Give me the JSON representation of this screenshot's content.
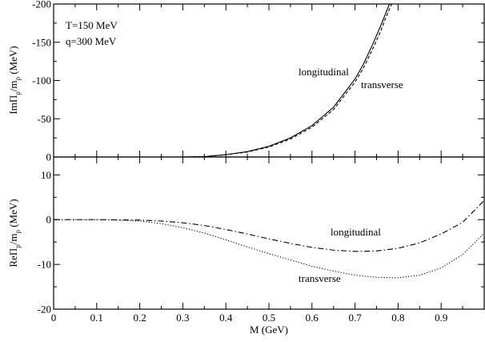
{
  "chart_data": [
    {
      "type": "line",
      "panel": "top",
      "ylabel": "ImΠ_ρ/m_ρ (MeV)",
      "ylabel_parts": {
        "pre": "ImΠ",
        "sub1": "ρ",
        "mid": "/m",
        "sub2": "ρ",
        "post": " (MeV)"
      },
      "xlim": [
        0,
        1.0
      ],
      "ylim": [
        0,
        -200
      ],
      "y_ticks": [
        0,
        -50,
        -100,
        -150,
        -200
      ],
      "y_tick_labels": [
        "0",
        "-50",
        "-100",
        "-150",
        "-200"
      ],
      "annotations": [
        "T=150 MeV",
        "q=300 MeV",
        "longitudinal",
        "transverse"
      ],
      "series": [
        {
          "name": "longitudinal",
          "style": "solid",
          "x": [
            0.3,
            0.35,
            0.4,
            0.45,
            0.5,
            0.55,
            0.6,
            0.65,
            0.7,
            0.72,
            0.74,
            0.76,
            0.77,
            0.78
          ],
          "y": [
            0,
            -0.5,
            -3,
            -7,
            -14,
            -25,
            -41,
            -65,
            -102,
            -122,
            -146,
            -172,
            -186,
            -200
          ]
        },
        {
          "name": "transverse",
          "style": "dashed",
          "x": [
            0.3,
            0.35,
            0.4,
            0.45,
            0.5,
            0.55,
            0.6,
            0.65,
            0.7,
            0.72,
            0.74,
            0.76,
            0.77,
            0.785
          ],
          "y": [
            0,
            -0.5,
            -3,
            -6.5,
            -13,
            -23.5,
            -39,
            -62,
            -98,
            -117,
            -140,
            -165,
            -180,
            -200
          ]
        }
      ]
    },
    {
      "type": "line",
      "panel": "bottom",
      "xlabel": "M (GeV)",
      "ylabel": "ReΠ_ρ/m_ρ (MeV)",
      "ylabel_parts": {
        "pre": "ReΠ",
        "sub1": "ρ",
        "mid": "/m",
        "sub2": "ρ",
        "post": " (MeV)"
      },
      "xlim": [
        0,
        1.0
      ],
      "ylim": [
        -20,
        14
      ],
      "x_ticks": [
        0,
        0.1,
        0.2,
        0.3,
        0.4,
        0.5,
        0.6,
        0.7,
        0.8,
        0.9
      ],
      "x_tick_labels": [
        "0",
        "0.1",
        "0.2",
        "0.3",
        "0.4",
        "0.5",
        "0.6",
        "0.7",
        "0.8",
        "0.9"
      ],
      "y_ticks": [
        -20,
        -10,
        0,
        10
      ],
      "y_tick_labels": [
        "-20",
        "-10",
        "0",
        "10"
      ],
      "annotations": [
        "longitudinal",
        "transverse"
      ],
      "series": [
        {
          "name": "longitudinal",
          "style": "dashdot",
          "x": [
            0,
            0.1,
            0.2,
            0.25,
            0.3,
            0.35,
            0.4,
            0.45,
            0.5,
            0.55,
            0.6,
            0.65,
            0.7,
            0.75,
            0.8,
            0.85,
            0.9,
            0.95,
            1.0
          ],
          "y": [
            0,
            0,
            -0.1,
            -0.3,
            -0.7,
            -1.3,
            -2.2,
            -3.2,
            -4.3,
            -5.3,
            -6.2,
            -6.8,
            -7.1,
            -7.0,
            -6.4,
            -5.2,
            -3.2,
            -0.6,
            4.3
          ]
        },
        {
          "name": "transverse",
          "style": "dotted",
          "x": [
            0,
            0.1,
            0.15,
            0.2,
            0.25,
            0.3,
            0.35,
            0.4,
            0.45,
            0.5,
            0.55,
            0.6,
            0.65,
            0.7,
            0.75,
            0.8,
            0.85,
            0.9,
            0.95,
            1.0
          ],
          "y": [
            0,
            0,
            -0.1,
            -0.3,
            -0.9,
            -1.8,
            -3.0,
            -4.5,
            -6.1,
            -7.6,
            -9.0,
            -10.4,
            -11.5,
            -12.4,
            -12.9,
            -13.0,
            -12.4,
            -10.8,
            -7.8,
            -3.0
          ]
        }
      ]
    }
  ]
}
